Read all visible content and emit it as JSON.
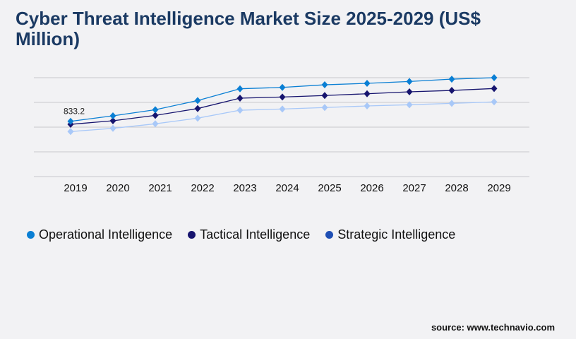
{
  "title": "Cyber Threat Intelligence Market Size 2025-2029 (US$ Million)",
  "source": "source: www.technavio.com",
  "chart_data": {
    "type": "line",
    "title": "Cyber Threat Intelligence Market Size 2025-2029 (US$ Million)",
    "xlabel": "",
    "ylabel": "",
    "categories": [
      "2019",
      "2020",
      "2021",
      "2022",
      "2023",
      "2024",
      "2025",
      "2026",
      "2027",
      "2028",
      "2029"
    ],
    "ylim": [
      0,
      1490
    ],
    "grid": true,
    "legend_position": "bottom-left",
    "series": [
      {
        "name": "Operational Intelligence",
        "color": "#0a7fd4",
        "legend_color": "#0a7fd4",
        "values": [
          833.2,
          915,
          1007,
          1146,
          1323,
          1344,
          1383,
          1405,
          1433,
          1468,
          1490
        ]
      },
      {
        "name": "Tactical Intelligence",
        "color": "#16146e",
        "legend_color": "#16146e",
        "values": [
          787,
          841,
          922,
          1025,
          1181,
          1199,
          1221,
          1248,
          1277,
          1298,
          1327
        ]
      },
      {
        "name": "Strategic Intelligence",
        "color": "#a8c8f8",
        "legend_color": "#1f4fb4",
        "values": [
          678,
          727,
          795,
          880,
          1000,
          1018,
          1040,
          1064,
          1082,
          1103,
          1125
        ]
      }
    ],
    "data_labels": [
      {
        "series": 0,
        "index": 0,
        "text": "833.2"
      }
    ]
  }
}
